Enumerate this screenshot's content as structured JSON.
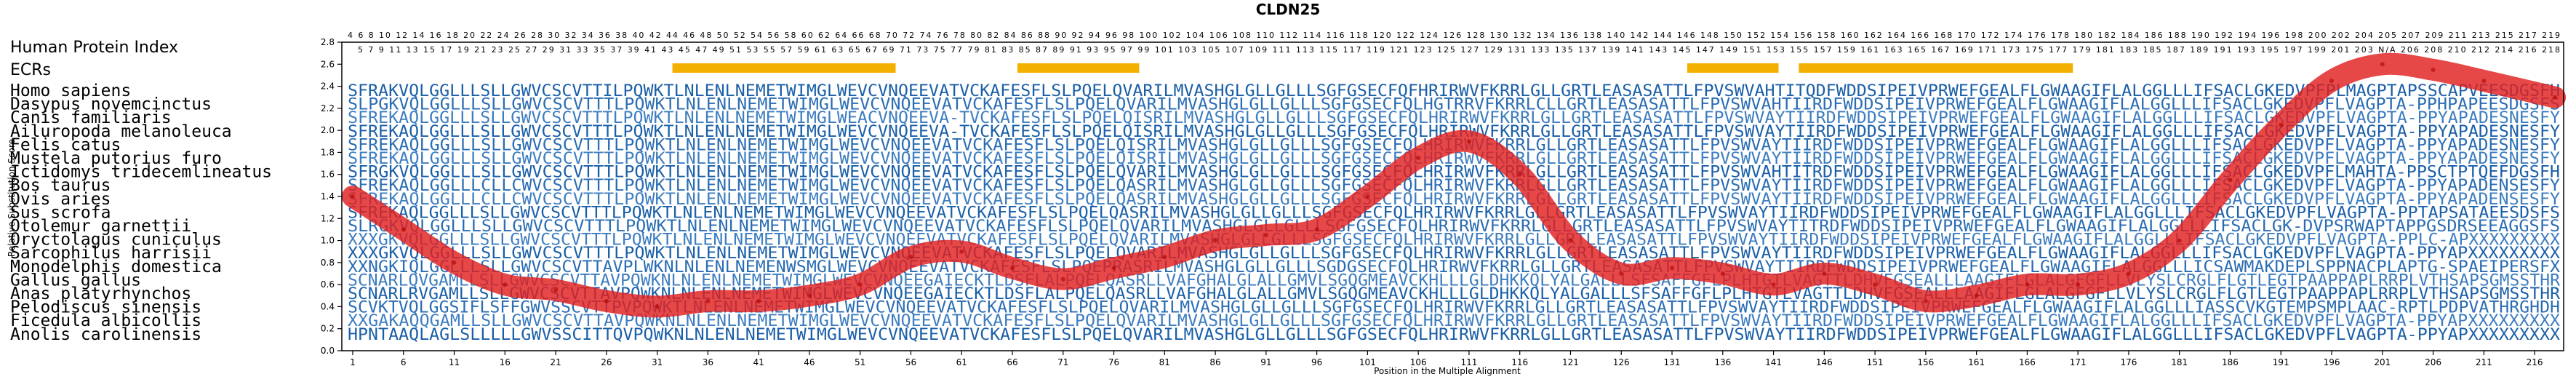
{
  "chart_data": {
    "type": "line",
    "title": "CLDN25",
    "xlabel": "Position in the Multiple Alignment",
    "ylabel": "Relative Substitution Score",
    "xlim": [
      1,
      218
    ],
    "ylim": [
      0,
      2.8
    ],
    "yticks": [
      "0.0",
      "0.2",
      "0.4",
      "0.6",
      "0.8",
      "1.0",
      "1.2",
      "1.4",
      "1.6",
      "1.8",
      "2.0",
      "2.2",
      "2.4",
      "2.6",
      "2.8"
    ],
    "xtick_labels": [
      "1",
      "6",
      "11",
      "16",
      "21",
      "26",
      "31",
      "36",
      "41",
      "46",
      "51",
      "56",
      "61",
      "66",
      "71",
      "76",
      "81",
      "86",
      "91",
      "96",
      "101",
      "106",
      "111",
      "116",
      "121",
      "126",
      "131",
      "136",
      "141",
      "146",
      "151",
      "156",
      "161",
      "166",
      "171",
      "176",
      "181",
      "186",
      "191",
      "196",
      "201",
      "206",
      "211",
      "216"
    ],
    "human_protein_index_label": "Human Protein Index",
    "ecrs_label": "ECRs",
    "hpi_row1": "4 6 8 10 12 14 16 18 20 22 24 26 28 30 32 34 36 38 40 42 44 46 48 50 52 54 56 58 60 62 64 66 68 70 72 74 76 78 80 82 84 86 88 90 92 94 96 98 100 102 104 106 108 110 112 114 116 118 120 122 124 126 128 130 132 134 136 138 140 142 144 146 148 150 152 154 156 158 160 162 164 166 168 170 172 174 176 178 180 182 184 186 188 190 192 194 196 198 200 202 204 205 207 209 211 213 215 217 219",
    "hpi_row2": "5 7 9 11 13 15 17 19 21 23 25 27 29 31 33 35 37 39 41 43 45 47 49 51 53 55 57 59 61 63 65 67 69 71 73 75 77 79 81 83 85 87 89 91 93 95 97 99 101 103 105 107 109 111 113 115 117 119 121 123 125 127 129 131 133 135 137 139 141 143 145 147 149 151 153 155 157 159 161 163 165 167 169 171 173 175 177 179 181 183 185 187 189 191 193 195 197 199 201 203 N/A 206 208 210 212 214 216 218",
    "ecr_regions": [
      [
        33,
        54
      ],
      [
        67,
        78
      ],
      [
        133,
        141
      ],
      [
        144,
        170
      ]
    ],
    "species": [
      {
        "name": "Homo sapiens",
        "seq": "SFRAKVQLGGLLLSLLGWVCSCVTTILPQWKTLNLENLNEMETWIMGLWEVCVNQEEVATVCKAFESFLSLPQELQVARILMVASHGLGLLGLLLSGFGSECFQFHRIRWVFKRRLGLLGRTLEASASATTLFPVSWVAHTITQDFWDDSIPEIVPRWEFGEALFLGWAAGIFLALGGLLLIFSACLGKEDVPFPLMAGPTAPSSCAPVEESDGSFH"
      },
      {
        "name": "Dasypus novemcinctus",
        "seq": "SLPGKVQLGGLLLSLLGWVCSCVTTTLPQWKTLNLENLNEMETWIMGLWEVCVNQEEVATVCKAFESFLSLPQELQVARILMVASHGLGLLGLLLSGFGSECFQLHGTRRVFKRRLCLLGRTLEASASATTLFPVSWVAHTIIRDFWDDSIPEIVPRWEFGEALFLGWAAGIFLALGGLLLIFSACLGKEDVPFLVAGPTA-PPHPAPEESDGSFS"
      },
      {
        "name": "Canis familiaris",
        "seq": "SFREKAQLGGLLLSLLGWVCSCVTTTLPQWKTLNLENLNEMETWIMGLWEACVNQEEVA-TVCKAFESFLSLPQELQISRILMVASHGLGLLGLLLSGFGSECFQLHRIRWVFKRRLGLLGRTLEASASATTLFPVSWVAYTIIRDFWDDSIPEIVPRWEFGEALFLGWAAGIFLALGGLLLIFSACLGKEDVPFLVAGPTA-PPYAPADESNESFY"
      },
      {
        "name": "Ailuropoda melanoleuca",
        "seq": "SFREKAQLGGLLLSLLGWVCSCVTTTLPQWKTLNLENLNEMETWIMGLWEVCVNQEEVA-TVCKAFESFLSLPQELQISRILMVASHGLGLLGLLLSGFGSECFQLHRIRWVFKRRLGLLGRTLEASASATTLFPVSWVAYTIIRDFWDDSIPEIVPRWEFGEALFLGWAAGIFLALGGLLLIFSACLGKEDVPFLVAGPTA-PPYAPADESNESFY"
      },
      {
        "name": "Felis catus",
        "seq": "SFREKAQLGGLLLSLLGWVCSCVTTTLPQWKTLNLENLNEMETWIMGLWEVCVNQEEVATVCKAFESFLSLPQELQISRILMVASHGLGLLGLLLSGFGSECFQLHRIRWVFKRRLGLLGRTLEASASATTLFPVSWVAYTIIRDFWDDSIPEIVPRWEFGEALFLGWAAGIFLALGGLLLIFSACLGKEDVPFLVAGPTA-PPYAPADESNESFY"
      },
      {
        "name": "Mustela putorius furo",
        "seq": "SFREKAQLGGLLLSLLGWVCSCVTTTLPQWKTLNLENLNEMETWIMGLWEVCVNQEEVATVCKAFESFLSLPQELQISRILMVASHGLGLLGLLLSGFGSECFQLHRIRWVFKRRLGLLGRTLEASASATTLFPVSWVAYTIIRDFWDDSIPEIVPRWEFGEALFLGWAAGIFLALGGLLLIFSACLGKEDVPFLVAGPTA-PPYAPADESNESFY"
      },
      {
        "name": "Ictidomys tridecemlineatus",
        "seq": "SFRGKVQLGGLLLSLLGWVCSCVTTTLPQWKTLNLENLNEMETWIMGLWEVCVNQEEVATVCKAFESFLSLPQELQVARILMVASHGLGLLGLLLSGFGSECFQLHRIRWVFKRRLGLLGRTLEASASATTLFPVSWVAHTITRDFWDDSIPEIVPRWEFGEALFLGWAAGIFLALGGLLLIFSACLGKEDVPFLMAHTA-PPSCTPTQEFDGSFH"
      },
      {
        "name": "Bos taurus",
        "seq": "SFREKAQLGGLLLCLLCWVCSCVTTTLPQWKTLNLENLNEMETWIMGLWEVCVNQEEVATVCKAFESFLSLPQELQASRILMVASHGLGLLGLLLSGFGSECFQLHRIRWVFKRRLGLLGRTLEASASATTLFPVSWVAYTIIRDFWDDSIPEIVPRWEFGEALFLGWAAGIFLALGGLLLIFSACLGKEDVPFLVAGPTA-PPYAPADENSESFY"
      },
      {
        "name": "Ovis aries",
        "seq": "SFREKAQLGGLLLCLLCWVCSCVTTTLPQWKTLNLENLNEMETWIMGLWEVCVNQEEVATVCKAFESFLSLPQELQASRILMVASHGLGLLGLLLSGFGSECFQLHRIRWVFKRRLGLLGRTLEASASATTLFPVSWVAYTIIRDFWDDSIPEIVPRWEFGEALFLGWAAGIFLALGGLLLIFSACLGKEDVPFLVAGPTA-PPYAPADENSESFY"
      },
      {
        "name": "Sus scrofa",
        "seq": "SFREKAQLGGLLLSLLGWVCSCVTTTLPQWKTLNLENLNEMETWIMGLWEVCVNQEEVATVCKAFESFLSLPQELQASRILMVASHGLGLLGLLLSGFGSECFQLHRIRWVFKRRLGLLGRTLEASASATTLFPVSWVAYTIIRDFWDDSIPEIVPRWEFGEALFLGWAAGIFLALGGLLLIFSACLGKEDVPFLVAGPTA-PPTAPSATAEESDSFS"
      },
      {
        "name": "Otolemur garnettii",
        "seq": "SLRGKVQLGGLLLSLLGWVCSCVTTTLPQWKTLNLENLNEMETWIMGLWEVCVNQEEVATVCKAFESFLSLPQELQVARILMVASHGLGLLGLLLSGFGSECFQLHRIRWVFKRRLGLLGRTLEASASATTLFPVSWVAYTITRDFWDDSIPEIVPRWEFGEALFLGWAAGIFLALGGLLLIFSACLGK-DVPSRWAPTAPPGSDRSEEAGGSFS"
      },
      {
        "name": "Oryctolagus cuniculus",
        "seq": "XXXGKVQLGGLLLSLLGWVCSCVTTTLPQWKTLNLENLNEMETWIMGLWEVCVNQEEVATVCKAFESFLSLPQELQVARILMVASHGLGLLGLLLSGFGSECFQLHRIRWVFKRRLGLLGRTLEASASATTLFPVSWVAYTIIRDFWDDSIPEIVPRWEFGEALFLGWAAGIFLALGGLLLIFSACLGKEDVPFLVAGPTA-PPLC-APXXXXXXXXX"
      },
      {
        "name": "Sarcophilus harrisii",
        "seq": "XXXGKVQLGGLLLSLLGWVCSCVTTTLPQWKTLNLENLNEMETWIMGLWEVCVNQEEVATVCKAFESFLSLPQELQVARILMVASHGLGLLGLLLSGFGSECFQLHRIRWVFKRRLGLLGRTLEASASATTLFPVSWVAYTIIRDFWDDSIPEIVPRWEFGEALFLGWAAGIFLALGGLLLIFSACLGKEDVPFLVAGPTA-PPYAPXXXXXXXXX"
      },
      {
        "name": "Monodelphis domestica",
        "seq": "XXNGKIQLGGLLLSLLGWVCSCVTTAVPLWKNLNLENLNEMENWSMGLWEVCVNQEEVATVCKAFESFLSLPQEPRASRILMVASHGLGLLGLLLSGDGSECFQLHRIRWVFKRRLGLLGRTLEASASATTLFPVSWVAYTIIRDFWDDSIPEIVPRWEFGEALFLGWAAGIFLALGGLLLICSAWMAKDEPLSPPNACPLAPTG-SPAEIPERSFX"
      },
      {
        "name": "Gallus gallus",
        "seq": "SCNARLQVGAMLLSLLGWVCSCVTTAVPQWKNLNLENLNEMETWIMGLWEVCVNQEEGAIECKTLDSFLALPQELQASRLLVAFGHALGLALLGMVLSGQGMEAVCKHLLLGLDHKKQLYALGALLLSFSAFFGFLPLHTGTLVAGTTLDHVFGSEALLLAAGIFLGLALGFGFLLVLYSLCRGLFLGTLEGTPAAPPAPLRRPLVTHSAPSGMSSTHR"
      },
      {
        "name": "Anas platyrhynchos",
        "seq": "SCNARLRVGAMLLSLLGWVCSCVTTAVPQWKNLNLENLNEMETWIMGLWEVCVNQEEGAIECKTLDSFLALPQELQASRLLVAFGHALGLALLGMVLSGQGMEAVCKHLLLGLDHKKQLYALGALLLSFSAFFGFLPLHTGTLVAGTTLDHVFGSEALLLAAGIFLGLALGFGFLLVLYSLCRGLFLGTLEGTPAAPPAPLRRPLVTHSAPSGMSSTHR"
      },
      {
        "name": "Pelodiscus sinensis",
        "seq": "SCVKTVQLGGSIFLSFFGWVSSCVTTPVPQWKTLNLENLNEMETWIMGLWEVCVNQEEVATVCKAFESFLSLPQELQVARILMVASHGLGLLGLLLSGFGSECFQLHRIRWVFKRRLGLLGRTLEASASATTLFPVSWVAYTIIRDFWDDSIPEIVPRWEFGEALFLGWAAGIFLALGGLLLIASSCVKGTEMPSMPLAAC-RPTLPDPVATHRGHDH"
      },
      {
        "name": "Ficedula albicollis",
        "seq": "XXGAKAQQGAMLLSLLGWVCSCVTTAVPQWKNLNLENLNEMETWIMGLWEVCVNQEEVATVCKAFESFLSLPQELQVARILMVASHGLGLLGLLLSGFGSECFQLHRIRWVFKRRLGLLGRTLEASASATTLFPVSWVAYTIIRDFWDDSIPEIVPRWEFGEALFLGWAAGIFLALGGLLLIFSACLGKEDVPFLVAGPTA-PPYAPXXXXXXXXX"
      },
      {
        "name": "Anolis carolinensis",
        "seq": "HPNTAAQLAGLSLLLLLGWVSSCITTQVPQWKNLNLENLNEMETWIMGLWEVCVNQEEVATVCKAFESFLSLPQELQVARILMVASHGLGLLGLLLSGFGSECFQLHRIRWVFKRRLGLLGRTLEASASATTLFPVSWVAYTIIRDFWDDSIPEIVPRWEFGEALFLGWAAGIFLALGGLLLIFSACLGKEDVPFLVAGPTA-PPYAPXXXXXXXXX"
      }
    ],
    "series": [
      {
        "name": "",
        "x": [
          1,
          6,
          11,
          16,
          21,
          26,
          31,
          36,
          41,
          46,
          51,
          56,
          61,
          66,
          71,
          76,
          81,
          86,
          91,
          96,
          101,
          106,
          111,
          116,
          121,
          126,
          131,
          136,
          141,
          146,
          151,
          156,
          161,
          166,
          171,
          176,
          181,
          186,
          191,
          196,
          201,
          206,
          211,
          218
        ],
        "y": [
          1.4,
          1.1,
          0.8,
          0.6,
          0.55,
          0.45,
          0.4,
          0.45,
          0.45,
          0.5,
          0.6,
          0.85,
          0.9,
          0.75,
          0.65,
          0.75,
          0.85,
          1.0,
          1.05,
          1.1,
          1.4,
          1.75,
          1.9,
          1.6,
          1.0,
          0.7,
          0.75,
          0.7,
          0.6,
          0.7,
          0.6,
          0.45,
          0.5,
          0.6,
          0.6,
          0.7,
          1.0,
          1.55,
          2.05,
          2.45,
          2.6,
          2.55,
          2.45,
          2.3
        ]
      }
    ],
    "colors": {
      "curve": "#e02020",
      "ecr": "#f2b000",
      "seq_dark": "#1a5fa8",
      "seq_light": "#8fb8e0"
    }
  }
}
